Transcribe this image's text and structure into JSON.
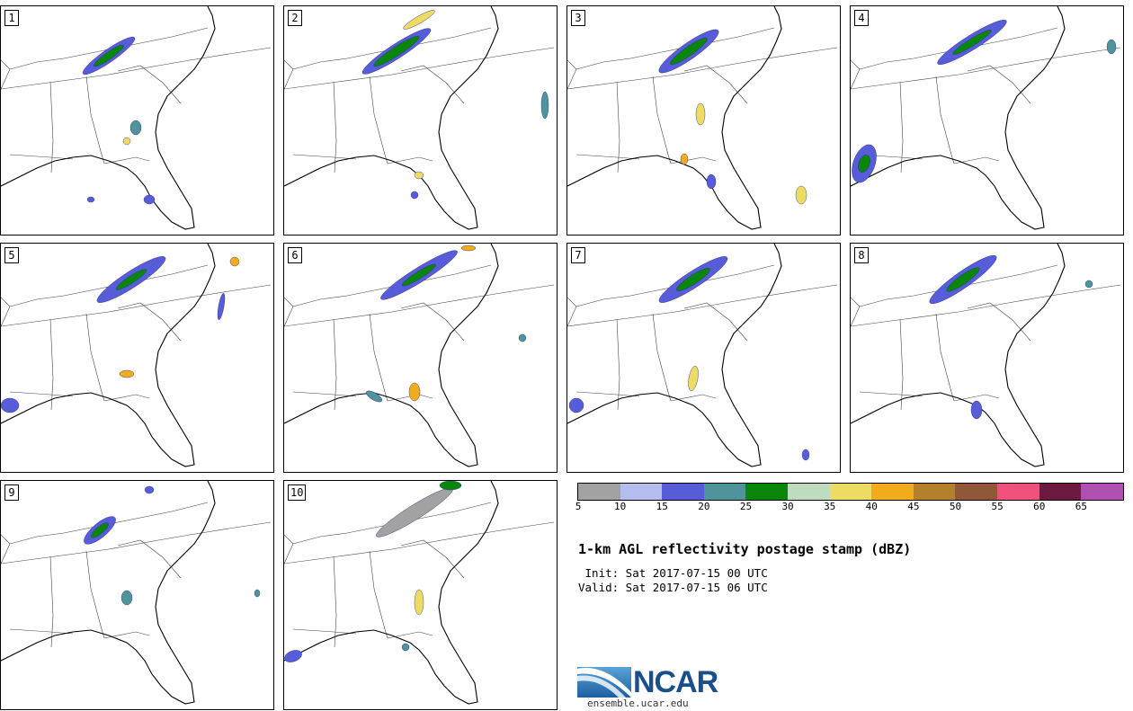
{
  "panels": [
    {
      "label": "1"
    },
    {
      "label": "2"
    },
    {
      "label": "3"
    },
    {
      "label": "4"
    },
    {
      "label": "5"
    },
    {
      "label": "6"
    },
    {
      "label": "7"
    },
    {
      "label": "8"
    },
    {
      "label": "9"
    },
    {
      "label": "10"
    }
  ],
  "colorbar": {
    "colors": [
      "#a2a2a2",
      "#b4bded",
      "#575cd9",
      "#4f949b",
      "#0a860a",
      "#c0dcc0",
      "#ecdc64",
      "#f0ac1c",
      "#b4802c",
      "#905838",
      "#f0507c",
      "#6c1a40",
      "#b050b0"
    ],
    "ticks": [
      "5",
      "10",
      "15",
      "20",
      "25",
      "30",
      "35",
      "40",
      "45",
      "50",
      "55",
      "60",
      "65"
    ]
  },
  "title": "1-km AGL reflectivity postage stamp (dBZ)",
  "init": " Init: Sat 2017-07-15 00 UTC",
  "valid": "Valid: Sat 2017-07-15 06 UTC",
  "logo": {
    "name": "NCAR",
    "url": "ensemble.ucar.edu"
  }
}
